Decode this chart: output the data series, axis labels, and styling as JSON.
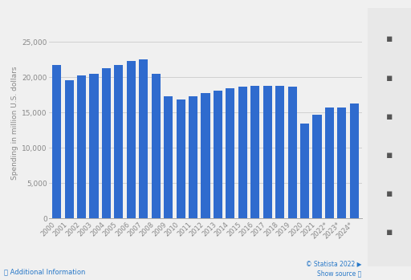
{
  "years": [
    "2000",
    "2001",
    "2002",
    "2003",
    "2004",
    "2005",
    "2006",
    "2007",
    "2008",
    "2009",
    "2010",
    "2011",
    "2012",
    "2013",
    "2014",
    "2015",
    "2016",
    "2017",
    "2018",
    "2019",
    "2020",
    "2021",
    "2022*",
    "2023*",
    "2024*"
  ],
  "values": [
    21700,
    19600,
    20250,
    20550,
    21350,
    21700,
    22300,
    22600,
    20450,
    17300,
    16900,
    17300,
    17800,
    18100,
    18450,
    18700,
    18750,
    18750,
    18750,
    18700,
    13500,
    14700,
    15750,
    15750,
    16350
  ],
  "bar_color": "#2f6bce",
  "ylabel": "Spending in million U.S. dollars",
  "ylim": [
    0,
    27000
  ],
  "yticks": [
    0,
    5000,
    10000,
    15000,
    20000,
    25000
  ],
  "bg_color": "#f0f0f0",
  "plot_bg_color": "#f0f0f0",
  "grid_color": "#cccccc",
  "bar_width": 0.72
}
